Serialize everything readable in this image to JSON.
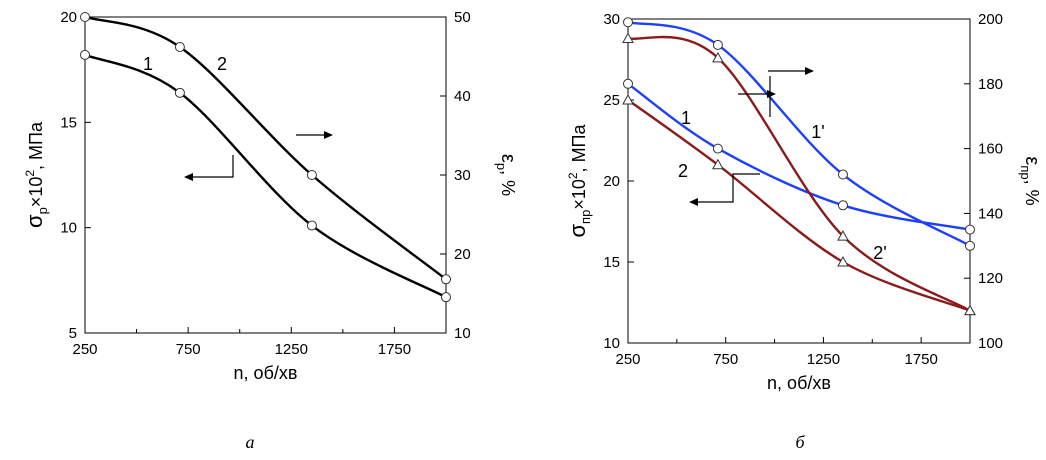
{
  "chart_data": [
    {
      "type": "line",
      "panel_label": "а",
      "xlabel": "n, об/хв",
      "ylabel": "σр×10², МПа",
      "ylabel_parts": {
        "main": "σ",
        "sub": "р",
        "mid": "×10",
        "sup": "2",
        "tail": ", МПа"
      },
      "y2label": "εр, %",
      "y2label_parts": {
        "main": "ε",
        "sub": "р",
        "tail": ", %"
      },
      "xlim": [
        250,
        2000
      ],
      "xticks": [
        "250",
        "750",
        "1250",
        "1750"
      ],
      "ylim": [
        5,
        20
      ],
      "yticks": [
        "5",
        "10",
        "15",
        "20"
      ],
      "y2lim": [
        10,
        50
      ],
      "y2ticks": [
        "10",
        "20",
        "30",
        "40",
        "50"
      ],
      "grid": false,
      "series": [
        {
          "name": "1",
          "axis": "left",
          "color": "#000000",
          "marker": "circle",
          "x": [
            250,
            710,
            1350,
            2000
          ],
          "y": [
            18.2,
            16.4,
            10.1,
            6.7
          ]
        },
        {
          "name": "2",
          "axis": "right",
          "color": "#000000",
          "marker": "circle",
          "x": [
            250,
            710,
            1350,
            2000
          ],
          "y": [
            50,
            46.2,
            30,
            16.8
          ]
        }
      ]
    },
    {
      "type": "line",
      "panel_label": "б",
      "xlabel": "n, об/хв",
      "ylabel": "σпр×10², МПа",
      "ylabel_parts": {
        "main": "σ",
        "sub": "пр",
        "mid": "×10",
        "sup": "2",
        "tail": ", МПа"
      },
      "y2label": "εпр, %",
      "y2label_parts": {
        "main": "ε",
        "sub": "пр",
        "tail": ", %"
      },
      "xlim": [
        250,
        2000
      ],
      "xticks": [
        "250",
        "750",
        "1250",
        "1750"
      ],
      "ylim": [
        10,
        30
      ],
      "yticks": [
        "10",
        "15",
        "20",
        "25",
        "30"
      ],
      "y2lim": [
        100,
        200
      ],
      "y2ticks": [
        "100",
        "120",
        "140",
        "160",
        "180",
        "200"
      ],
      "grid": false,
      "series": [
        {
          "name": "1",
          "axis": "left",
          "color": "#1f3fff",
          "marker": "circle",
          "x": [
            250,
            710,
            1350,
            2000
          ],
          "y": [
            26,
            22,
            18.5,
            17
          ]
        },
        {
          "name": "1ʹ",
          "axis": "left",
          "color": "#8b1a1a",
          "marker": "triangle",
          "x": [
            250,
            710,
            1350,
            2000
          ],
          "y": [
            25,
            21,
            15,
            12
          ]
        },
        {
          "name": "2",
          "axis": "right",
          "color": "#1f3fff",
          "marker": "circle",
          "x": [
            250,
            710,
            1350,
            2000
          ],
          "y": [
            199,
            192,
            152,
            130
          ]
        },
        {
          "name": "2ʹ",
          "axis": "right",
          "color": "#8b1a1a",
          "marker": "triangle",
          "x": [
            250,
            710,
            1350,
            2000
          ],
          "y": [
            194,
            188,
            133,
            110
          ]
        }
      ]
    }
  ]
}
